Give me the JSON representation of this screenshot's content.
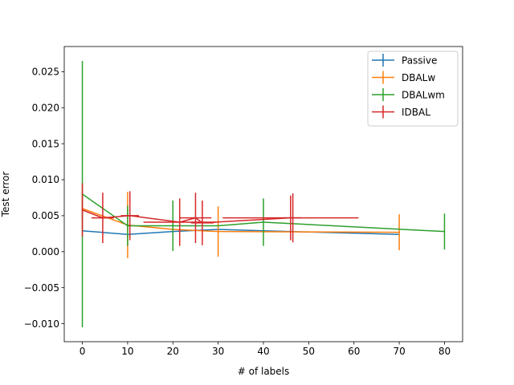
{
  "chart_data": {
    "type": "line",
    "title": "",
    "xlabel": "# of labels",
    "ylabel": "Test error",
    "xlim": [
      -4,
      84
    ],
    "ylim": [
      -0.0125,
      0.0285
    ],
    "xticks": [
      0,
      10,
      20,
      30,
      40,
      50,
      60,
      70,
      80
    ],
    "yticks": [
      -0.01,
      -0.005,
      0.0,
      0.005,
      0.01,
      0.015,
      0.02,
      0.025
    ],
    "ytick_labels": [
      "−0.010",
      "−0.005",
      "0.000",
      "0.005",
      "0.010",
      "0.015",
      "0.020",
      "0.025"
    ],
    "legend_position": "top-right",
    "series": [
      {
        "name": "Passive",
        "color": "#1f77b4",
        "points": [
          {
            "x": 0,
            "y": 0.0029,
            "yerr": 0.0
          },
          {
            "x": 10,
            "y": 0.0024,
            "yerr": 0.0
          },
          {
            "x": 20,
            "y": 0.0028,
            "yerr": 0.0
          },
          {
            "x": 30,
            "y": 0.0031,
            "yerr": 0.0
          },
          {
            "x": 40,
            "y": 0.0029,
            "yerr": 0.0
          },
          {
            "x": 70,
            "y": 0.0024,
            "yerr": 0.0
          }
        ]
      },
      {
        "name": "DBALw",
        "color": "#ff7f0e",
        "points": [
          {
            "x": 0,
            "y": 0.006,
            "yerr": 0.0016
          },
          {
            "x": 10,
            "y": 0.0037,
            "yerr": 0.0046
          },
          {
            "x": 20,
            "y": 0.0031,
            "yerr": 0.0
          },
          {
            "x": 30,
            "y": 0.0028,
            "yerr": 0.0035
          },
          {
            "x": 70,
            "y": 0.0027,
            "yerr": 0.0025
          }
        ]
      },
      {
        "name": "DBALwm",
        "color": "#2ca02c",
        "points": [
          {
            "x": 0,
            "y": 0.008,
            "yerr": 0.0185
          },
          {
            "x": 10,
            "y": 0.0036,
            "yerr": 0.0028
          },
          {
            "x": 20,
            "y": 0.0036,
            "yerr": 0.0035
          },
          {
            "x": 30,
            "y": 0.0036,
            "yerr": 0.0
          },
          {
            "x": 40,
            "y": 0.0041,
            "yerr": 0.0033
          },
          {
            "x": 80,
            "y": 0.0028,
            "yerr": 0.0025
          }
        ]
      },
      {
        "name": "IDBAL",
        "color": "#d62728",
        "points": [
          {
            "x": 0,
            "y": 0.0058,
            "yerr": 0.0037,
            "xerr": 0.0
          },
          {
            "x": 4.5,
            "y": 0.0047,
            "yerr": 0.0035,
            "xerr": 2.5
          },
          {
            "x": 10.5,
            "y": 0.005,
            "yerr": 0.0034,
            "xerr": 2.0
          },
          {
            "x": 21.5,
            "y": 0.0041,
            "yerr": 0.0033,
            "xerr": 8.0
          },
          {
            "x": 25,
            "y": 0.0047,
            "yerr": 0.0035,
            "xerr": 3.5
          },
          {
            "x": 26.5,
            "y": 0.004,
            "yerr": 0.0031,
            "xerr": 2.5
          },
          {
            "x": 46,
            "y": 0.0047,
            "yerr": 0.0031,
            "xerr": 15.0
          },
          {
            "x": 46.5,
            "y": 0.0047,
            "yerr": 0.0034,
            "xerr": 2.0
          }
        ]
      }
    ]
  }
}
